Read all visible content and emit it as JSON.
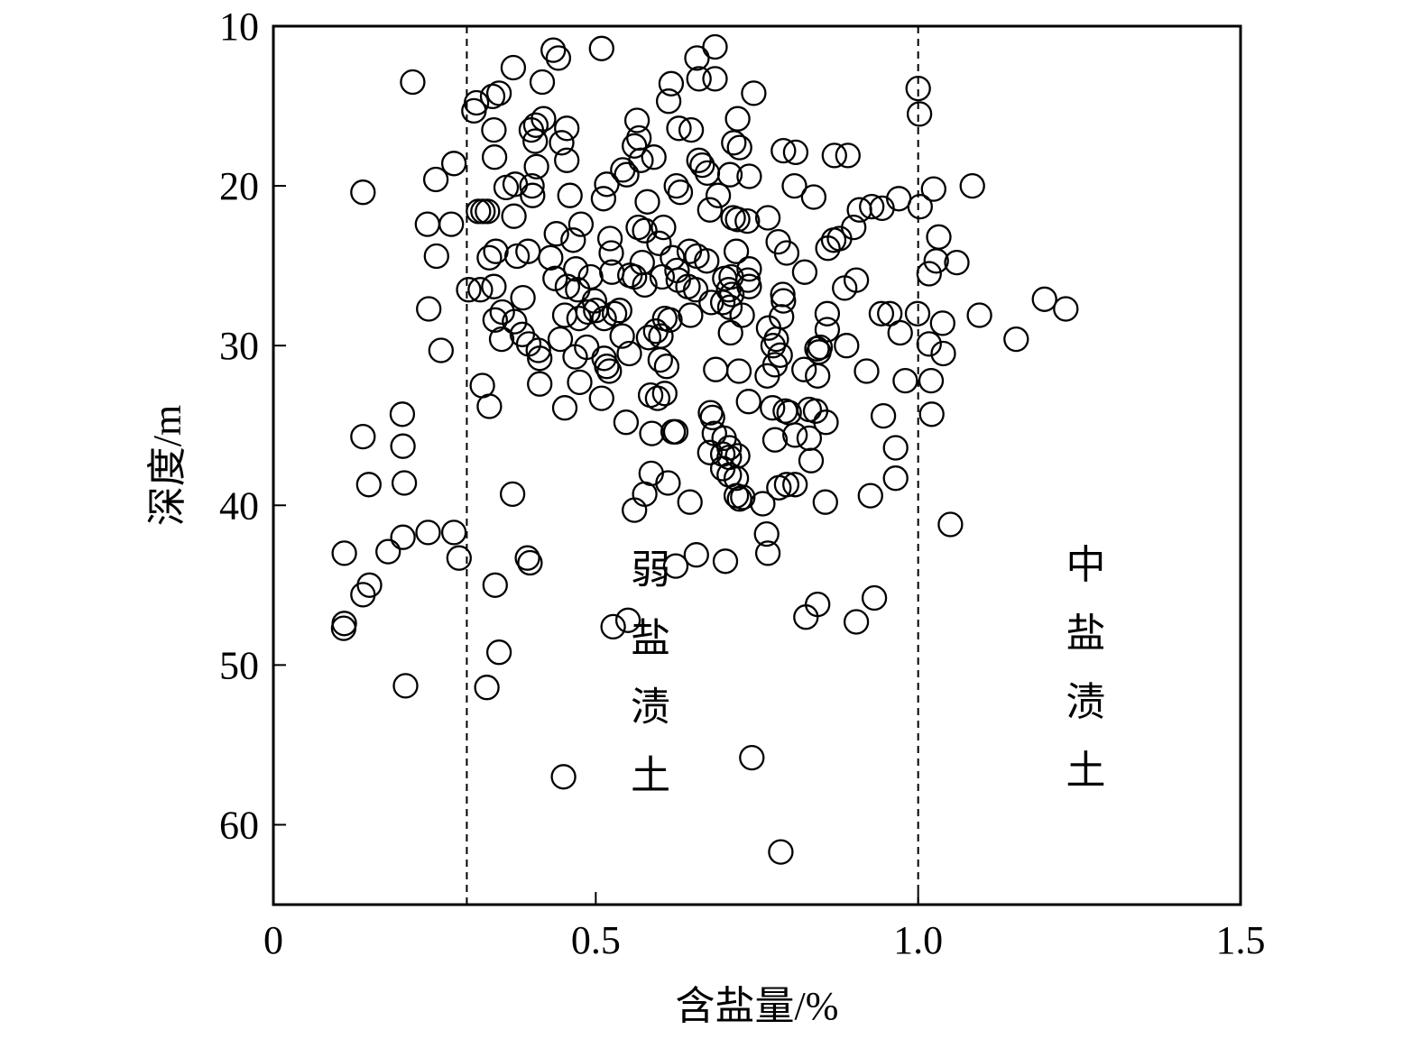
{
  "chart_data": {
    "type": "scatter",
    "xlabel": "含盐量/%",
    "ylabel": "深度/m",
    "xlim": [
      0,
      1.5
    ],
    "ylim": [
      10,
      65
    ],
    "y_inverted": true,
    "x_ticks": [
      {
        "value": 0,
        "label": "0"
      },
      {
        "value": 0.5,
        "label": "0.5"
      },
      {
        "value": 1.0,
        "label": "1.0"
      },
      {
        "value": 1.5,
        "label": "1.5"
      }
    ],
    "y_ticks": [
      {
        "value": 10,
        "label": "10"
      },
      {
        "value": 20,
        "label": "20"
      },
      {
        "value": 30,
        "label": "30"
      },
      {
        "value": 40,
        "label": "40"
      },
      {
        "value": 50,
        "label": "50"
      },
      {
        "value": 60,
        "label": "60"
      }
    ],
    "reference_lines": [
      {
        "axis": "x",
        "value": 0.3,
        "style": "dashed"
      },
      {
        "axis": "x",
        "value": 1.0,
        "style": "dashed"
      }
    ],
    "annotations": [
      {
        "text": "弱盐渍土",
        "x": 0.585,
        "y_top": 43.5
      },
      {
        "text": "中盐渍土",
        "x": 1.26,
        "y_top": 43.2
      }
    ],
    "marker": {
      "shape": "open-circle",
      "color": "#000000"
    },
    "grid": false,
    "legend": "none",
    "points": [
      [
        0.216,
        13.5
      ],
      [
        0.434,
        11.5
      ],
      [
        0.442,
        12.0
      ],
      [
        0.372,
        12.6
      ],
      [
        0.509,
        11.4
      ],
      [
        0.657,
        12.0
      ],
      [
        0.685,
        11.3
      ],
      [
        0.66,
        13.3
      ],
      [
        0.617,
        13.6
      ],
      [
        0.417,
        13.5
      ],
      [
        0.685,
        13.3
      ],
      [
        1.0,
        13.9
      ],
      [
        0.35,
        14.2
      ],
      [
        0.34,
        14.4
      ],
      [
        0.315,
        14.8
      ],
      [
        0.311,
        15.3
      ],
      [
        0.745,
        14.2
      ],
      [
        0.613,
        14.7
      ],
      [
        1.002,
        15.5
      ],
      [
        0.419,
        15.8
      ],
      [
        0.455,
        16.4
      ],
      [
        0.4,
        16.5
      ],
      [
        0.407,
        16.2
      ],
      [
        0.629,
        16.4
      ],
      [
        0.342,
        16.5
      ],
      [
        0.564,
        15.9
      ],
      [
        0.648,
        16.5
      ],
      [
        0.72,
        15.8
      ],
      [
        0.406,
        17.2
      ],
      [
        0.447,
        17.3
      ],
      [
        0.567,
        17.0
      ],
      [
        0.56,
        17.5
      ],
      [
        0.714,
        17.3
      ],
      [
        0.723,
        17.6
      ],
      [
        0.791,
        17.8
      ],
      [
        0.81,
        17.9
      ],
      [
        0.87,
        18.1
      ],
      [
        0.891,
        18.1
      ],
      [
        0.343,
        18.2
      ],
      [
        0.455,
        18.4
      ],
      [
        0.57,
        18.4
      ],
      [
        0.59,
        18.2
      ],
      [
        0.66,
        18.4
      ],
      [
        0.665,
        18.7
      ],
      [
        0.408,
        18.8
      ],
      [
        0.28,
        18.6
      ],
      [
        0.542,
        19.0
      ],
      [
        0.548,
        19.3
      ],
      [
        0.673,
        19.2
      ],
      [
        0.708,
        19.3
      ],
      [
        0.738,
        19.4
      ],
      [
        0.252,
        19.6
      ],
      [
        0.375,
        19.9
      ],
      [
        0.401,
        20.0
      ],
      [
        0.361,
        20.1
      ],
      [
        0.517,
        19.9
      ],
      [
        0.625,
        20.0
      ],
      [
        0.631,
        20.4
      ],
      [
        0.69,
        20.6
      ],
      [
        0.808,
        20.0
      ],
      [
        0.838,
        20.7
      ],
      [
        0.139,
        20.4
      ],
      [
        0.402,
        20.6
      ],
      [
        0.46,
        20.6
      ],
      [
        0.512,
        20.8
      ],
      [
        0.58,
        21.0
      ],
      [
        0.677,
        21.5
      ],
      [
        0.97,
        20.8
      ],
      [
        1.003,
        21.3
      ],
      [
        1.084,
        20.0
      ],
      [
        1.024,
        20.2
      ],
      [
        0.318,
        21.6
      ],
      [
        0.325,
        21.6
      ],
      [
        0.332,
        21.6
      ],
      [
        0.373,
        21.9
      ],
      [
        0.713,
        22.0
      ],
      [
        0.72,
        22.1
      ],
      [
        0.735,
        22.2
      ],
      [
        0.767,
        22.0
      ],
      [
        0.909,
        21.5
      ],
      [
        0.928,
        21.3
      ],
      [
        0.944,
        21.4
      ],
      [
        0.477,
        22.4
      ],
      [
        0.566,
        22.6
      ],
      [
        0.576,
        22.8
      ],
      [
        0.605,
        22.6
      ],
      [
        0.239,
        22.4
      ],
      [
        0.276,
        22.4
      ],
      [
        0.9,
        22.6
      ],
      [
        0.439,
        23.0
      ],
      [
        0.465,
        23.4
      ],
      [
        0.522,
        23.3
      ],
      [
        0.598,
        23.6
      ],
      [
        0.783,
        23.5
      ],
      [
        0.869,
        23.4
      ],
      [
        0.878,
        23.3
      ],
      [
        0.86,
        23.9
      ],
      [
        1.032,
        23.2
      ],
      [
        0.345,
        24.1
      ],
      [
        0.395,
        24.1
      ],
      [
        0.524,
        24.2
      ],
      [
        0.645,
        24.1
      ],
      [
        0.657,
        24.4
      ],
      [
        0.718,
        24.1
      ],
      [
        0.796,
        24.2
      ],
      [
        0.253,
        24.4
      ],
      [
        0.335,
        24.5
      ],
      [
        0.378,
        24.4
      ],
      [
        0.43,
        24.5
      ],
      [
        0.619,
        24.5
      ],
      [
        0.572,
        24.8
      ],
      [
        0.672,
        24.7
      ],
      [
        1.028,
        24.7
      ],
      [
        1.06,
        24.8
      ],
      [
        0.469,
        25.2
      ],
      [
        0.525,
        25.4
      ],
      [
        0.626,
        25.3
      ],
      [
        0.738,
        25.2
      ],
      [
        0.553,
        25.6
      ],
      [
        0.56,
        25.7
      ],
      [
        0.603,
        25.7
      ],
      [
        0.628,
        25.9
      ],
      [
        0.7,
        25.8
      ],
      [
        0.71,
        25.7
      ],
      [
        0.736,
        25.9
      ],
      [
        0.437,
        25.8
      ],
      [
        0.492,
        25.7
      ],
      [
        0.824,
        25.4
      ],
      [
        1.017,
        25.5
      ],
      [
        0.576,
        26.2
      ],
      [
        0.643,
        26.3
      ],
      [
        0.655,
        26.5
      ],
      [
        0.706,
        26.5
      ],
      [
        0.711,
        26.8
      ],
      [
        0.738,
        26.3
      ],
      [
        0.904,
        25.9
      ],
      [
        0.886,
        26.4
      ],
      [
        0.303,
        26.5
      ],
      [
        0.321,
        26.5
      ],
      [
        0.342,
        26.3
      ],
      [
        0.456,
        26.3
      ],
      [
        0.472,
        26.5
      ],
      [
        0.387,
        27.0
      ],
      [
        0.498,
        27.2
      ],
      [
        0.679,
        27.3
      ],
      [
        0.697,
        27.3
      ],
      [
        0.708,
        27.6
      ],
      [
        0.79,
        26.8
      ],
      [
        0.791,
        27.2
      ],
      [
        1.196,
        27.1
      ],
      [
        1.229,
        27.7
      ],
      [
        0.241,
        27.7
      ],
      [
        0.355,
        27.9
      ],
      [
        0.488,
        27.9
      ],
      [
        0.5,
        27.8
      ],
      [
        0.537,
        27.8
      ],
      [
        0.647,
        28.1
      ],
      [
        0.727,
        28.1
      ],
      [
        0.788,
        28.2
      ],
      [
        0.859,
        28.0
      ],
      [
        0.956,
        28.0
      ],
      [
        0.943,
        28.0
      ],
      [
        0.999,
        28.0
      ],
      [
        1.038,
        28.6
      ],
      [
        1.095,
        28.1
      ],
      [
        0.344,
        28.4
      ],
      [
        0.374,
        28.5
      ],
      [
        0.474,
        28.3
      ],
      [
        0.513,
        28.3
      ],
      [
        0.529,
        28.0
      ],
      [
        0.607,
        28.3
      ],
      [
        0.615,
        28.4
      ],
      [
        0.768,
        28.9
      ],
      [
        0.452,
        28.1
      ],
      [
        0.859,
        29.0
      ],
      [
        0.593,
        29.1
      ],
      [
        0.601,
        29.4
      ],
      [
        0.709,
        29.2
      ],
      [
        0.582,
        29.5
      ],
      [
        0.445,
        29.6
      ],
      [
        0.354,
        29.6
      ],
      [
        0.386,
        29.3
      ],
      [
        0.541,
        29.4
      ],
      [
        0.78,
        29.6
      ],
      [
        0.775,
        30.0
      ],
      [
        0.786,
        30.6
      ],
      [
        0.972,
        29.2
      ],
      [
        1.152,
        29.6
      ],
      [
        0.396,
        29.9
      ],
      [
        0.411,
        30.3
      ],
      [
        0.486,
        30.1
      ],
      [
        0.552,
        30.5
      ],
      [
        0.843,
        30.2
      ],
      [
        0.848,
        30.1
      ],
      [
        0.846,
        30.4
      ],
      [
        0.889,
        30.0
      ],
      [
        1.017,
        29.9
      ],
      [
        0.26,
        30.3
      ],
      [
        0.413,
        30.8
      ],
      [
        0.468,
        30.7
      ],
      [
        0.513,
        30.8
      ],
      [
        0.6,
        30.9
      ],
      [
        0.517,
        31.3
      ],
      [
        0.61,
        31.3
      ],
      [
        0.778,
        31.2
      ],
      [
        0.823,
        31.5
      ],
      [
        0.844,
        31.9
      ],
      [
        0.92,
        31.6
      ],
      [
        0.722,
        31.6
      ],
      [
        0.686,
        31.5
      ],
      [
        0.766,
        31.9
      ],
      [
        0.521,
        31.6
      ],
      [
        1.039,
        30.5
      ],
      [
        0.324,
        32.5
      ],
      [
        0.413,
        32.4
      ],
      [
        0.475,
        32.3
      ],
      [
        0.607,
        33.0
      ],
      [
        0.596,
        33.3
      ],
      [
        0.585,
        33.1
      ],
      [
        0.509,
        33.3
      ],
      [
        0.452,
        33.9
      ],
      [
        0.335,
        33.8
      ],
      [
        0.737,
        33.5
      ],
      [
        0.774,
        33.9
      ],
      [
        0.794,
        34.1
      ],
      [
        0.8,
        34.2
      ],
      [
        0.831,
        34.0
      ],
      [
        0.841,
        34.1
      ],
      [
        0.98,
        32.2
      ],
      [
        1.02,
        32.2
      ],
      [
        1.021,
        34.3
      ],
      [
        0.2,
        34.3
      ],
      [
        0.547,
        34.8
      ],
      [
        0.62,
        35.4
      ],
      [
        0.624,
        35.4
      ],
      [
        0.678,
        34.2
      ],
      [
        0.681,
        34.5
      ],
      [
        0.684,
        35.5
      ],
      [
        0.699,
        35.8
      ],
      [
        0.809,
        35.6
      ],
      [
        0.857,
        34.8
      ],
      [
        0.946,
        34.4
      ],
      [
        0.139,
        35.7
      ],
      [
        0.201,
        36.3
      ],
      [
        0.587,
        35.5
      ],
      [
        0.697,
        36.8
      ],
      [
        0.707,
        36.4
      ],
      [
        0.677,
        36.7
      ],
      [
        0.707,
        37.0
      ],
      [
        0.72,
        36.9
      ],
      [
        0.778,
        35.9
      ],
      [
        0.831,
        35.8
      ],
      [
        0.834,
        37.2
      ],
      [
        0.965,
        36.4
      ],
      [
        0.697,
        37.7
      ],
      [
        0.707,
        38.1
      ],
      [
        0.718,
        38.3
      ],
      [
        0.586,
        38.0
      ],
      [
        0.612,
        38.6
      ],
      [
        0.148,
        38.7
      ],
      [
        0.203,
        38.6
      ],
      [
        0.965,
        38.3
      ],
      [
        0.784,
        38.9
      ],
      [
        0.796,
        38.7
      ],
      [
        0.809,
        38.7
      ],
      [
        0.718,
        39.4
      ],
      [
        0.728,
        39.5
      ],
      [
        0.723,
        39.6
      ],
      [
        0.759,
        39.9
      ],
      [
        0.371,
        39.3
      ],
      [
        0.576,
        39.3
      ],
      [
        0.646,
        39.8
      ],
      [
        0.856,
        39.8
      ],
      [
        0.926,
        39.4
      ],
      [
        0.56,
        40.3
      ],
      [
        1.05,
        41.2
      ],
      [
        0.24,
        41.7
      ],
      [
        0.28,
        41.7
      ],
      [
        0.201,
        42.0
      ],
      [
        0.765,
        41.8
      ],
      [
        0.178,
        42.9
      ],
      [
        0.11,
        43.0
      ],
      [
        0.288,
        43.3
      ],
      [
        0.394,
        43.3
      ],
      [
        0.398,
        43.6
      ],
      [
        0.656,
        43.1
      ],
      [
        0.624,
        43.8
      ],
      [
        0.701,
        43.5
      ],
      [
        0.767,
        43.0
      ],
      [
        0.344,
        45.0
      ],
      [
        0.149,
        45.0
      ],
      [
        0.139,
        45.6
      ],
      [
        0.932,
        45.8
      ],
      [
        0.844,
        46.2
      ],
      [
        0.826,
        47.0
      ],
      [
        0.904,
        47.3
      ],
      [
        0.11,
        47.4
      ],
      [
        0.109,
        47.7
      ],
      [
        0.55,
        47.2
      ],
      [
        0.527,
        47.6
      ],
      [
        0.35,
        49.2
      ],
      [
        0.205,
        51.3
      ],
      [
        0.331,
        51.4
      ],
      [
        0.742,
        55.8
      ],
      [
        0.45,
        57.0
      ],
      [
        0.787,
        61.7
      ]
    ]
  }
}
